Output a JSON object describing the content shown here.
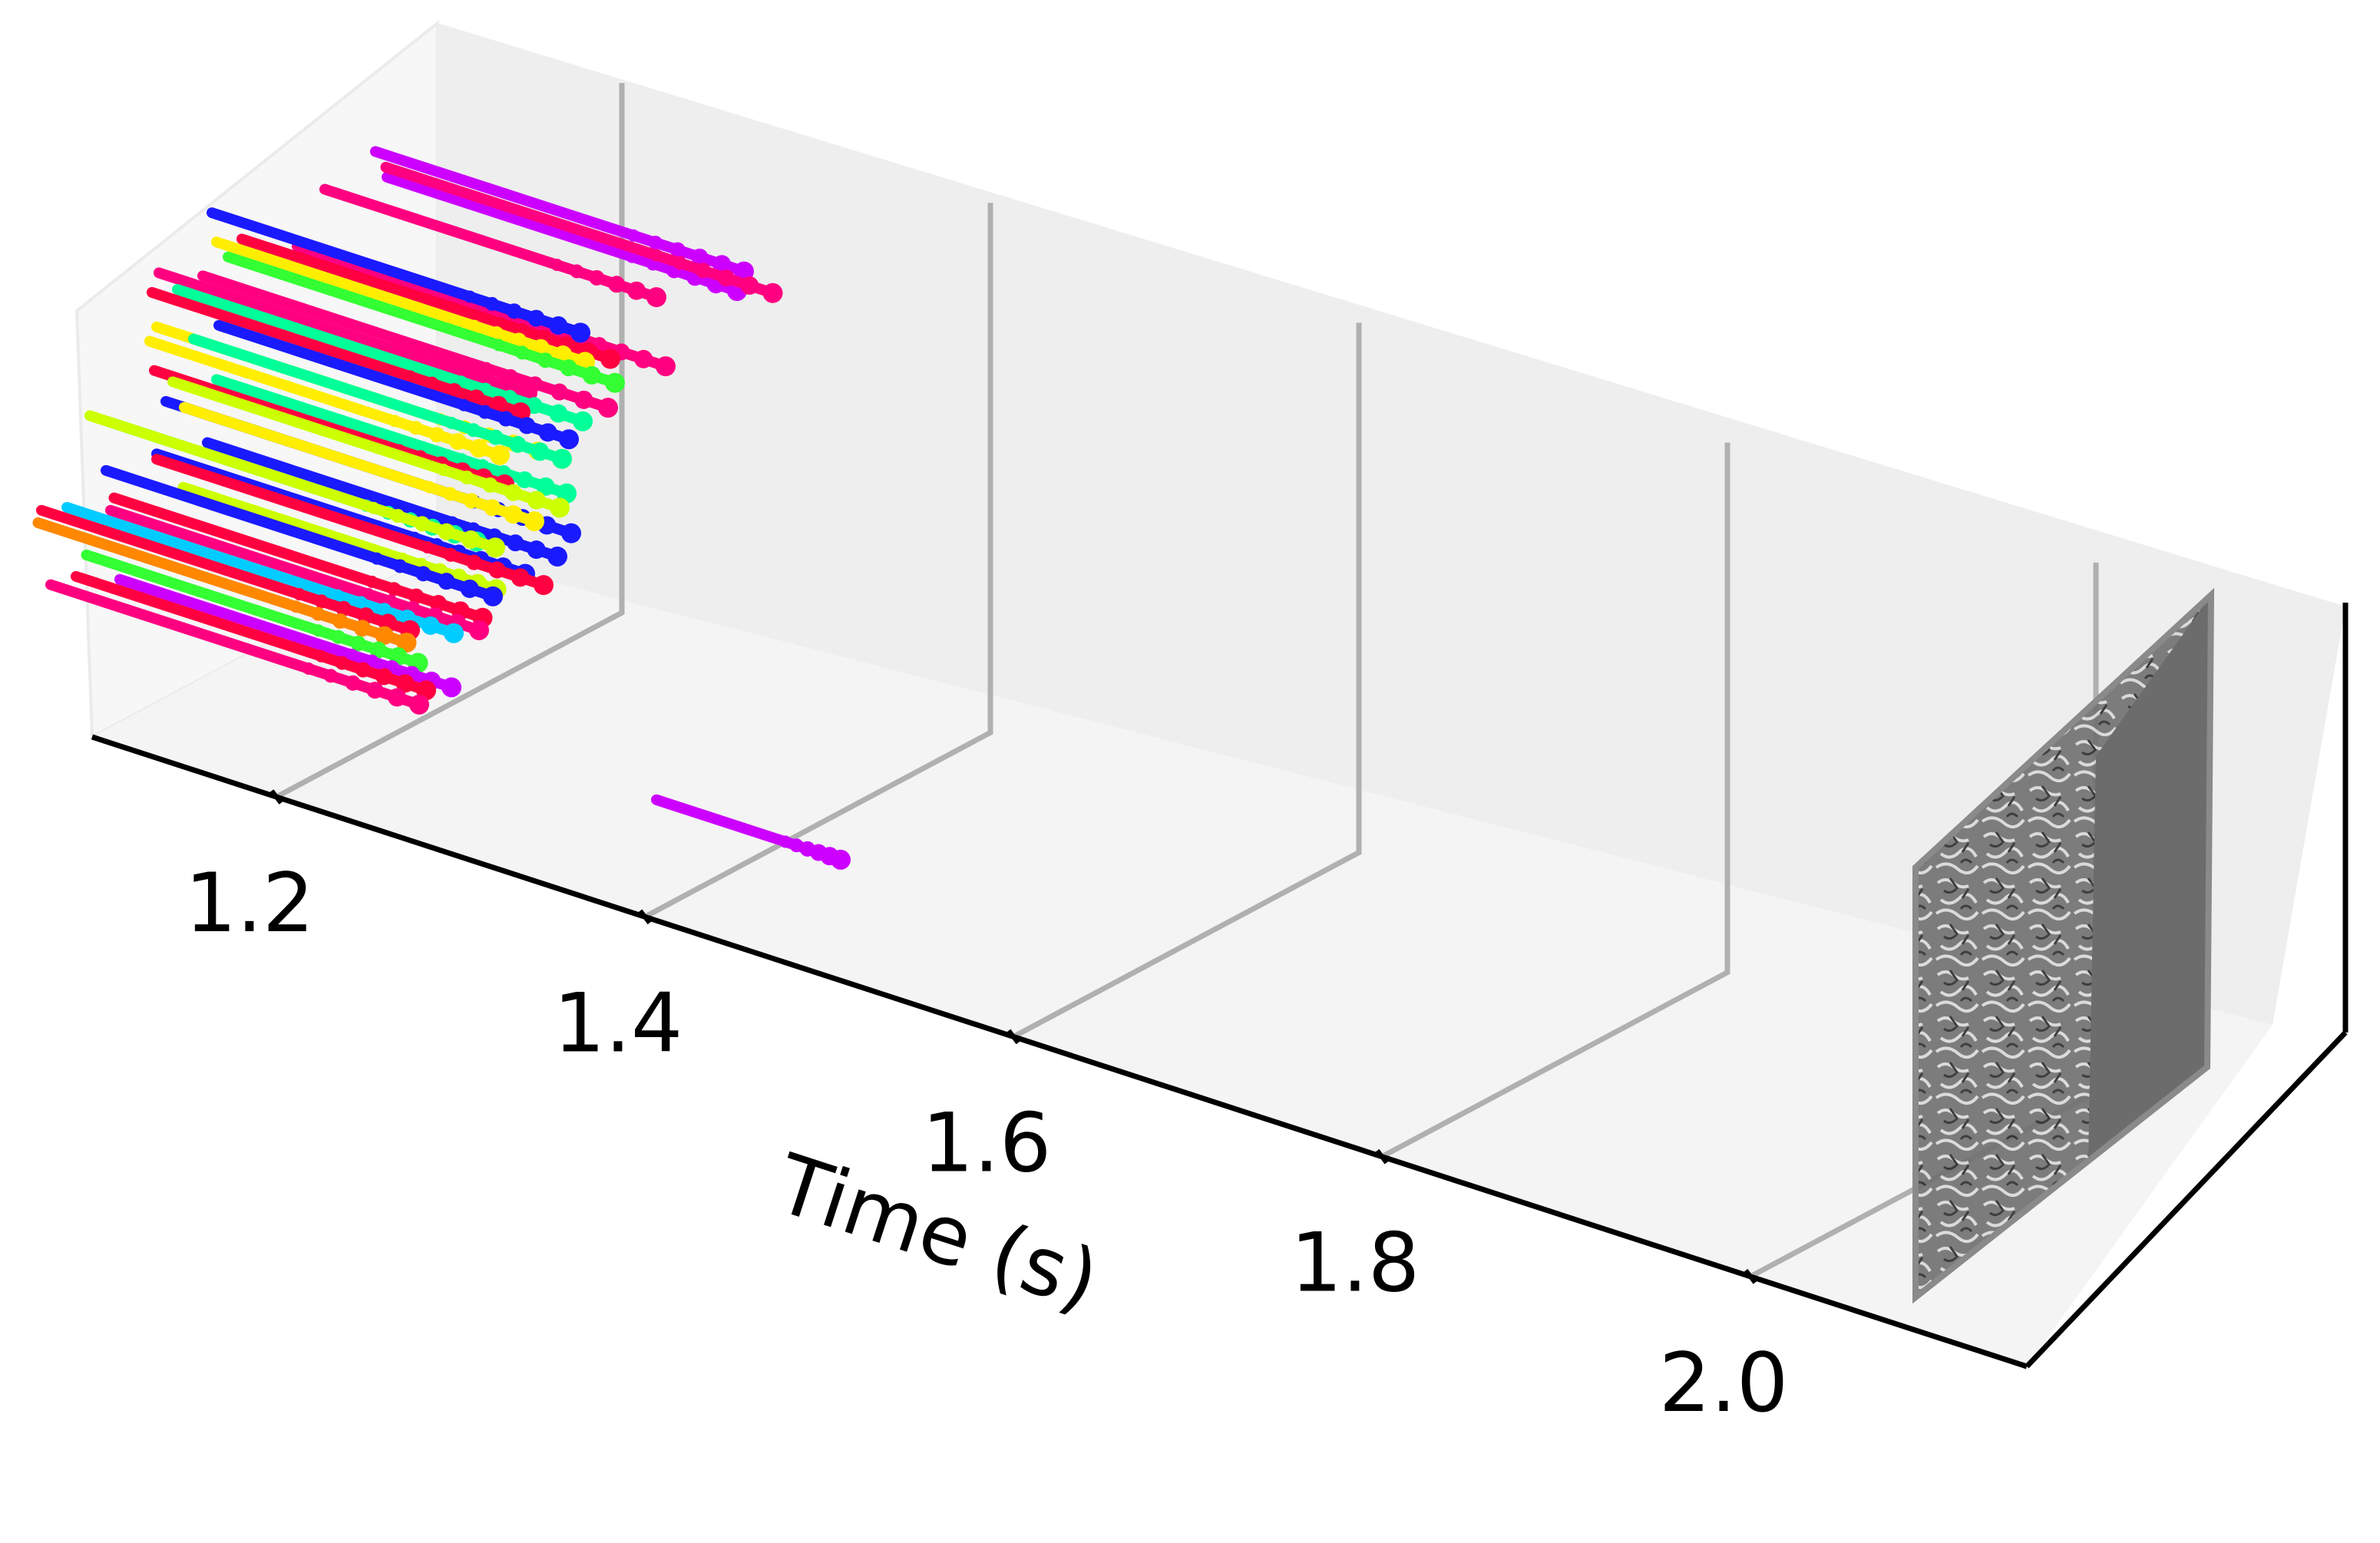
{
  "chart_data": {
    "type": "scatter",
    "subtype": "3d-event-trajectories",
    "xlabel": "Time (s)",
    "ylabel": "",
    "zlabel": "",
    "xlim": [
      1.1,
      2.15
    ],
    "xticks": [
      1.2,
      1.4,
      1.6,
      1.8,
      2.0
    ],
    "xtick_labels": [
      "1.2",
      "1.4",
      "1.6",
      "1.8",
      "2.0"
    ],
    "frame_at_time": 2.0,
    "grid": true,
    "legend": "none",
    "trajectories": [
      {
        "color": "#CC00FF",
        "t0": 1.1,
        "t1": 1.3,
        "y": 0.82,
        "z": 0.82
      },
      {
        "color": "#CC00FF",
        "t0": 1.11,
        "t1": 1.3,
        "y": 0.8,
        "z": 0.79
      },
      {
        "color": "#FF0080",
        "t0": 1.1,
        "t1": 1.31,
        "y": 0.85,
        "z": 0.78
      },
      {
        "color": "#FF0080",
        "t0": 1.08,
        "t1": 1.26,
        "y": 0.78,
        "z": 0.74
      },
      {
        "color": "#FF0080",
        "t0": 1.08,
        "t1": 1.28,
        "y": 0.7,
        "z": 0.66
      },
      {
        "color": "#1A1AFF",
        "t0": 1.03,
        "t1": 1.23,
        "y": 0.72,
        "z": 0.66
      },
      {
        "color": "#FF0040",
        "t0": 1.05,
        "t1": 1.25,
        "y": 0.7,
        "z": 0.64
      },
      {
        "color": "#FFEE00",
        "t0": 1.04,
        "t1": 1.24,
        "y": 0.68,
        "z": 0.63
      },
      {
        "color": "#33FF33",
        "t0": 1.05,
        "t1": 1.26,
        "y": 0.66,
        "z": 0.62
      },
      {
        "color": "#FF0080",
        "t0": 1.04,
        "t1": 1.26,
        "y": 0.64,
        "z": 0.58
      },
      {
        "color": "#FF0080",
        "t0": 1.02,
        "t1": 1.22,
        "y": 0.62,
        "z": 0.57
      },
      {
        "color": "#00FF99",
        "t0": 1.03,
        "t1": 1.25,
        "y": 0.62,
        "z": 0.55
      },
      {
        "color": "#FF0040",
        "t0": 1.02,
        "t1": 1.22,
        "y": 0.6,
        "z": 0.54
      },
      {
        "color": "#1A1AFF",
        "t0": 1.06,
        "t1": 1.25,
        "y": 0.58,
        "z": 0.53
      },
      {
        "color": "#FFEE00",
        "t0": 1.03,
        "t1": 1.25,
        "y": 0.56,
        "z": 0.5
      },
      {
        "color": "#00FF99",
        "t0": 1.05,
        "t1": 1.25,
        "y": 0.56,
        "z": 0.5
      },
      {
        "color": "#FFEE00",
        "t0": 1.03,
        "t1": 1.22,
        "y": 0.54,
        "z": 0.48
      },
      {
        "color": "#00FF99",
        "t0": 1.07,
        "t1": 1.26,
        "y": 0.52,
        "z": 0.46
      },
      {
        "color": "#FF0040",
        "t0": 1.04,
        "t1": 1.23,
        "y": 0.5,
        "z": 0.45
      },
      {
        "color": "#CCFF00",
        "t0": 1.05,
        "t1": 1.26,
        "y": 0.5,
        "z": 0.44
      },
      {
        "color": "#1A1AFF",
        "t0": 1.05,
        "t1": 1.27,
        "y": 0.48,
        "z": 0.41
      },
      {
        "color": "#FFEE00",
        "t0": 1.06,
        "t1": 1.25,
        "y": 0.48,
        "z": 0.41
      },
      {
        "color": "#1A1AFF",
        "t0": 1.08,
        "t1": 1.27,
        "y": 0.44,
        "z": 0.38
      },
      {
        "color": "#00FF99",
        "t0": 1.03,
        "t1": 1.23,
        "y": 0.42,
        "z": 0.37
      },
      {
        "color": "#CCFF00",
        "t0": 1.02,
        "t1": 1.24,
        "y": 0.42,
        "z": 0.37
      },
      {
        "color": "#1A1AFF",
        "t0": 1.06,
        "t1": 1.26,
        "y": 0.4,
        "z": 0.35
      },
      {
        "color": "#FF0040",
        "t0": 1.06,
        "t1": 1.27,
        "y": 0.4,
        "z": 0.34
      },
      {
        "color": "#CCFF00",
        "t0": 1.08,
        "t1": 1.25,
        "y": 0.37,
        "z": 0.32
      },
      {
        "color": "#1A1AFF",
        "t0": 1.04,
        "t1": 1.25,
        "y": 0.36,
        "z": 0.31
      },
      {
        "color": "#FF0040",
        "t0": 1.05,
        "t1": 1.25,
        "y": 0.33,
        "z": 0.28
      },
      {
        "color": "#FF0080",
        "t0": 1.05,
        "t1": 1.25,
        "y": 0.32,
        "z": 0.26
      },
      {
        "color": "#00CCFF",
        "t0": 1.03,
        "t1": 1.24,
        "y": 0.3,
        "z": 0.25
      },
      {
        "color": "#FF0040",
        "t0": 1.02,
        "t1": 1.22,
        "y": 0.28,
        "z": 0.24
      },
      {
        "color": "#FF8800",
        "t0": 1.02,
        "t1": 1.22,
        "y": 0.27,
        "z": 0.22
      },
      {
        "color": "#33FF33",
        "t0": 1.05,
        "t1": 1.23,
        "y": 0.25,
        "z": 0.2
      },
      {
        "color": "#CC00FF",
        "t0": 1.07,
        "t1": 1.25,
        "y": 0.24,
        "z": 0.18
      },
      {
        "color": "#FF0040",
        "t0": 1.05,
        "t1": 1.24,
        "y": 0.22,
        "z": 0.17
      },
      {
        "color": "#FF0080",
        "t0": 1.04,
        "t1": 1.24,
        "y": 0.2,
        "z": 0.15
      },
      {
        "color": "#CC00FF",
        "t0": 1.35,
        "t1": 1.45,
        "y": 0.3,
        "z": 0.06
      }
    ]
  }
}
